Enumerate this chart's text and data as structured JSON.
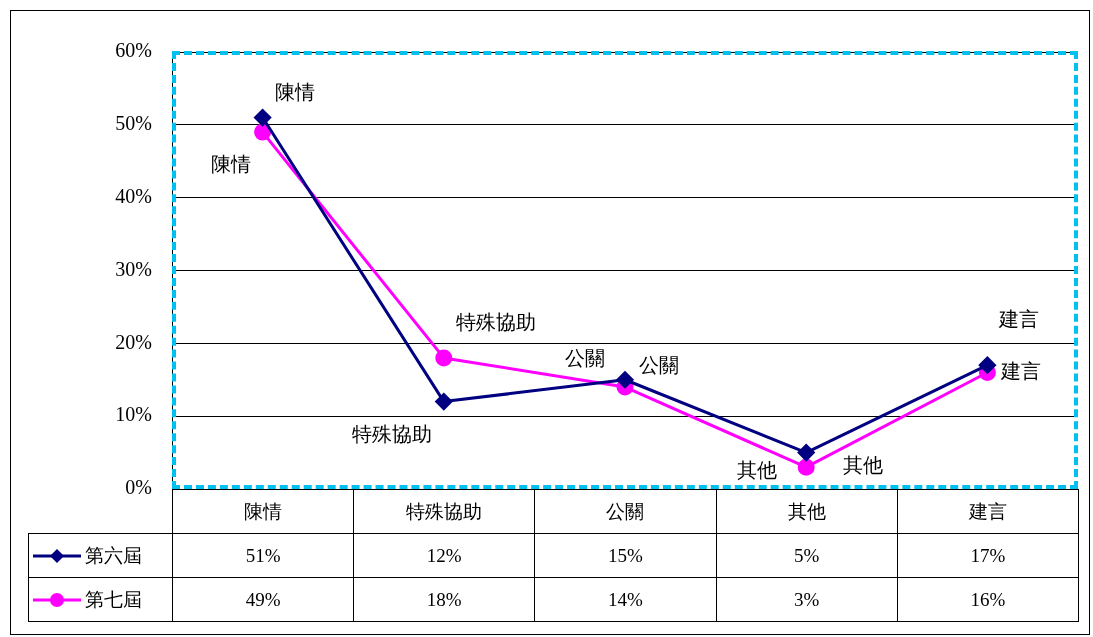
{
  "chart_data": {
    "type": "line",
    "categories": [
      "陳情",
      "特殊協助",
      "公關",
      "其他",
      "建言"
    ],
    "series": [
      {
        "name": "第六屆",
        "color": "#000080",
        "marker": "diamond",
        "values": [
          51,
          12,
          15,
          5,
          17
        ],
        "value_labels": [
          "51%",
          "12%",
          "15%",
          "5%",
          "17%"
        ]
      },
      {
        "name": "第七屆",
        "color": "#ff00ff",
        "marker": "circle",
        "values": [
          49,
          18,
          14,
          3,
          16
        ],
        "value_labels": [
          "49%",
          "18%",
          "14%",
          "3%",
          "16%"
        ]
      }
    ],
    "ylim": [
      0,
      60
    ],
    "yticks": [
      {
        "value": 0,
        "label": "0%"
      },
      {
        "value": 10,
        "label": "10%"
      },
      {
        "value": 20,
        "label": "20%"
      },
      {
        "value": 30,
        "label": "30%"
      },
      {
        "value": 40,
        "label": "40%"
      },
      {
        "value": 50,
        "label": "50%"
      },
      {
        "value": 60,
        "label": "60%"
      }
    ],
    "grid": "y",
    "legend": "bottom",
    "annotations": [
      {
        "text": "陳情",
        "x": "陳情",
        "y": 51
      },
      {
        "text": "特殊協助",
        "x": "特殊協助",
        "y": 12
      },
      {
        "text": "公關",
        "x": "公關",
        "y": 15
      },
      {
        "text": "其他",
        "x": "其他",
        "y": 5
      },
      {
        "text": "建言",
        "x": "建言",
        "y": 17
      },
      {
        "text": "陳情",
        "x": "陳情",
        "y": 49
      },
      {
        "text": "特殊協助",
        "x": "特殊協助",
        "y": 18
      },
      {
        "text": "公關",
        "x": "公關",
        "y": 14
      },
      {
        "text": "其他",
        "x": "其他",
        "y": 3
      },
      {
        "text": "建言",
        "x": "建言",
        "y": 16
      }
    ]
  }
}
